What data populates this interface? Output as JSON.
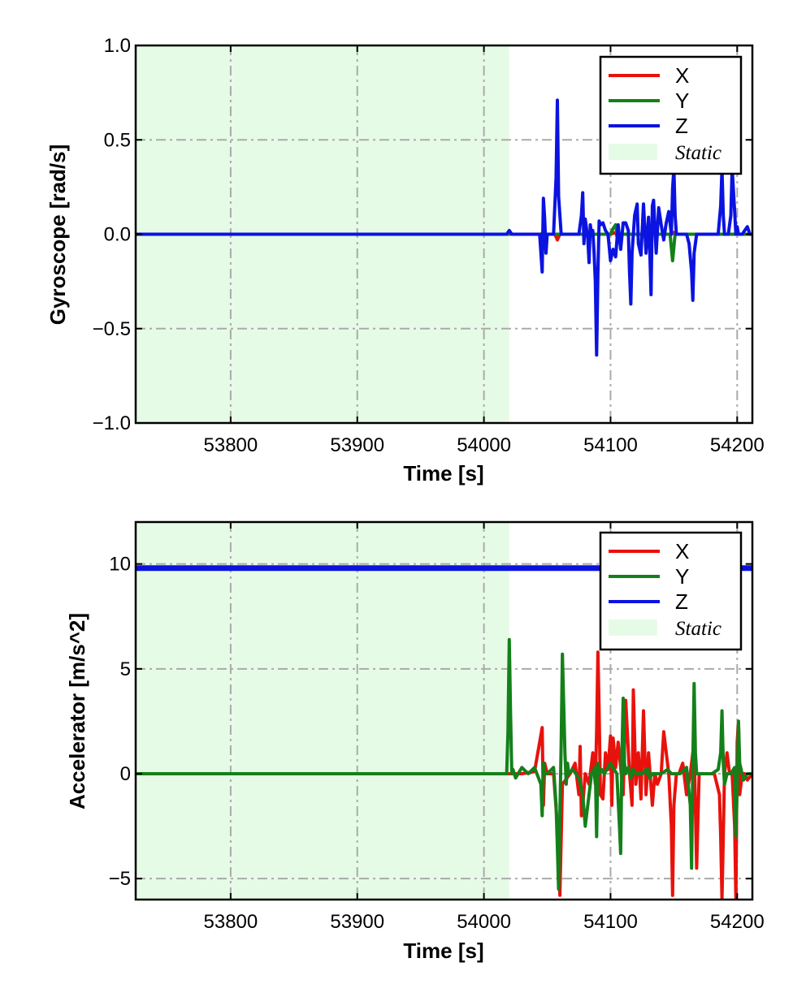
{
  "colors": {
    "X": "#e8120c",
    "Y": "#14801a",
    "Z": "#0b13e0",
    "static": "#e6fbe6",
    "grid": "#aaaaaa"
  },
  "chart_data": [
    {
      "type": "line",
      "xlabel": "Time [s]",
      "ylabel": "Gyroscope [rad/s]",
      "xlim": [
        53725,
        54212
      ],
      "ylim": [
        -1.0,
        1.0
      ],
      "xticks": [
        53800,
        53900,
        54000,
        54100,
        54200
      ],
      "xtick_labels": [
        "53800",
        "53900",
        "54000",
        "54100",
        "54200"
      ],
      "yticks": [
        -1.0,
        -0.5,
        0.0,
        0.5,
        1.0
      ],
      "ytick_labels": [
        "−1.0",
        "−0.5",
        "0.0",
        "0.5",
        "1.0"
      ],
      "grid": true,
      "legend": "top-right",
      "static_region": [
        53725,
        54020
      ],
      "static_label": "Static",
      "series": [
        {
          "name": "X",
          "x": [
            53725,
            54020,
            54045,
            54047,
            54049,
            54056,
            54058,
            54060,
            54100,
            54104,
            54106,
            54108,
            54148,
            54150,
            54152,
            54212
          ],
          "values": [
            0,
            0,
            0,
            0.01,
            0,
            0,
            -0.03,
            0,
            0,
            0.01,
            -0.03,
            0,
            0,
            0.01,
            0,
            0
          ]
        },
        {
          "name": "Y",
          "x": [
            53725,
            54020,
            54100,
            54102,
            54104,
            54106,
            54108,
            54147,
            54149,
            54151,
            54212
          ],
          "values": [
            0,
            0,
            0,
            0.03,
            0.05,
            -0.03,
            0,
            0,
            -0.14,
            0,
            0
          ]
        },
        {
          "name": "Z",
          "x": [
            53725,
            54018,
            54020,
            54022,
            54044,
            54046,
            54047,
            54048,
            54049,
            54050,
            54055,
            54057,
            54058,
            54059,
            54061,
            54075,
            54077,
            54078,
            54079,
            54080,
            54082,
            54083,
            54084,
            54085,
            54086,
            54087,
            54088,
            54089,
            54090,
            54091,
            54092,
            54094,
            54096,
            54098,
            54100,
            54102,
            54104,
            54106,
            54108,
            54110,
            54112,
            54114,
            54115,
            54116,
            54117,
            54119,
            54121,
            54122,
            54124,
            54126,
            54128,
            54130,
            54131,
            54132,
            54133,
            54134,
            54136,
            54138,
            54140,
            54142,
            54144,
            54146,
            54148,
            54149,
            54150,
            54151,
            54152,
            54154,
            54156,
            54160,
            54162,
            54164,
            54165,
            54166,
            54168,
            54170,
            54175,
            54180,
            54185,
            54187,
            54188,
            54189,
            54190,
            54191,
            54193,
            54195,
            54196,
            54198,
            54199,
            54200,
            54201,
            54202,
            54204,
            54206,
            54208,
            54210,
            54212
          ],
          "values": [
            0,
            0,
            0.02,
            0,
            0,
            -0.2,
            0.19,
            0.08,
            -0.1,
            0,
            0,
            0.3,
            0.71,
            0.2,
            0,
            0,
            0.1,
            0.22,
            -0.05,
            0.08,
            -0.02,
            -0.15,
            0.05,
            0,
            0.02,
            -0.1,
            -0.25,
            -0.64,
            -0.2,
            0.07,
            0.05,
            0.06,
            0.02,
            0,
            -0.14,
            -0.08,
            -0.12,
            0.05,
            -0.08,
            0.06,
            0.06,
            0.02,
            -0.2,
            -0.37,
            -0.1,
            0.1,
            0.16,
            -0.05,
            -0.11,
            0.16,
            -0.1,
            0.09,
            -0.1,
            -0.32,
            0.15,
            0.18,
            -0.1,
            0.14,
            0.05,
            -0.03,
            0.06,
            0.12,
            0,
            0.24,
            0.35,
            0.1,
            0,
            0,
            0,
            0,
            -0.05,
            -0.2,
            -0.35,
            -0.1,
            0,
            0,
            0,
            0,
            0,
            0.15,
            0.35,
            0.1,
            0,
            0,
            0,
            0.1,
            0.35,
            0.12,
            0,
            0.04,
            0,
            0,
            0,
            0.02,
            0.04,
            0,
            0
          ]
        }
      ]
    },
    {
      "type": "line",
      "xlabel": "Time [s]",
      "ylabel": "Accelerator [m/s^2]",
      "xlim": [
        53725,
        54212
      ],
      "ylim": [
        -6,
        12
      ],
      "xticks": [
        53800,
        53900,
        54000,
        54100,
        54200
      ],
      "xtick_labels": [
        "53800",
        "53900",
        "54000",
        "54100",
        "54200"
      ],
      "yticks": [
        -5,
        0,
        5,
        10
      ],
      "ytick_labels": [
        "−5",
        "0",
        "5",
        "10"
      ],
      "grid": true,
      "legend": "top-right",
      "static_region": [
        53725,
        54020
      ],
      "static_label": "Static",
      "series": [
        {
          "name": "X",
          "x": [
            53725,
            54020,
            54030,
            54040,
            54046,
            54047,
            54048,
            54050,
            54055,
            54058,
            54060,
            54062,
            54068,
            54072,
            54075,
            54076,
            54077,
            54078,
            54080,
            54083,
            54086,
            54088,
            54089,
            54090,
            54091,
            54092,
            54094,
            54096,
            54098,
            54100,
            54101,
            54102,
            54104,
            54106,
            54108,
            54110,
            54112,
            54115,
            54117,
            54118,
            54120,
            54122,
            54124,
            54126,
            54128,
            54130,
            54133,
            54135,
            54137,
            54140,
            54142,
            54146,
            54148,
            54149,
            54150,
            54152,
            54154,
            54157,
            54160,
            54163,
            54166,
            54168,
            54170,
            54174,
            54178,
            54182,
            54186,
            54187,
            54188,
            54189,
            54190,
            54192,
            54194,
            54196,
            54198,
            54199,
            54200,
            54201,
            54202,
            54204,
            54206,
            54208,
            54212
          ],
          "values": [
            0,
            0,
            0,
            0.1,
            2.2,
            -1.5,
            0.5,
            0,
            0,
            -2.5,
            -5.8,
            -0.5,
            0,
            0.5,
            -1.0,
            1.3,
            -2.0,
            -1.5,
            0,
            -0.5,
            1.0,
            -0.5,
            2.0,
            5.8,
            3.0,
            -1.0,
            -1.2,
            1.0,
            0.2,
            1.8,
            -1.5,
            1.7,
            0.3,
            1.5,
            0.3,
            -1.0,
            3.5,
            0,
            -1.5,
            4.0,
            -0.5,
            1.0,
            -1.2,
            3.0,
            -1.0,
            1.0,
            -1.5,
            0,
            -0.5,
            0,
            2.0,
            0,
            -2.5,
            -5.8,
            -1.5,
            0,
            0,
            0.5,
            -1.0,
            0,
            1.5,
            -4.5,
            0,
            0,
            0,
            0,
            -1.0,
            -3.0,
            -6.0,
            -3.0,
            0,
            1.0,
            0,
            0,
            -2.5,
            -6.0,
            1.5,
            2.5,
            -1.0,
            0,
            0,
            -0.3,
            0
          ]
        },
        {
          "name": "Y",
          "x": [
            53725,
            54018,
            54019,
            54020,
            54021,
            54022,
            54023,
            54025,
            54030,
            54035,
            54040,
            54045,
            54046,
            54047,
            54048,
            54050,
            54055,
            54057,
            54058,
            54059,
            54060,
            54061,
            54062,
            54064,
            54065,
            54066,
            54067,
            54070,
            54075,
            54078,
            54080,
            54085,
            54088,
            54089,
            54090,
            54091,
            54093,
            54095,
            54100,
            54105,
            54107,
            54108,
            54109,
            54110,
            54111,
            54112,
            54114,
            54116,
            54118,
            54120,
            54125,
            54128,
            54129,
            54130,
            54131,
            54133,
            54140,
            54145,
            54148,
            54150,
            54155,
            54160,
            54163,
            54164,
            54165,
            54166,
            54167,
            54168,
            54170,
            54175,
            54180,
            54185,
            54187,
            54188,
            54189,
            54190,
            54192,
            54195,
            54198,
            54199,
            54200,
            54201,
            54202,
            54205,
            54208,
            54212
          ],
          "values": [
            0,
            0,
            2.0,
            6.4,
            3.0,
            0,
            0.2,
            -0.2,
            0.3,
            0,
            0.3,
            -0.5,
            -2.0,
            0.5,
            0,
            0,
            0.3,
            -1.5,
            -3.5,
            -5.5,
            -2.0,
            1.5,
            5.7,
            1.0,
            -0.5,
            0.5,
            0,
            0.2,
            -0.2,
            -1.0,
            -2.5,
            0,
            0.3,
            -3.0,
            0.5,
            0,
            0.2,
            0,
            0.5,
            0,
            -2.5,
            -3.8,
            1.0,
            3.6,
            0.5,
            0,
            0.3,
            -0.2,
            0.2,
            0,
            0,
            0.2,
            0,
            0.2,
            -0.2,
            0,
            0,
            0.2,
            0,
            0,
            0,
            0.3,
            -1.5,
            -4.5,
            0.5,
            4.3,
            1.0,
            0,
            0,
            0,
            0,
            0.2,
            1.0,
            3.0,
            0.5,
            -0.5,
            0,
            0,
            0.3,
            -3.0,
            -0.5,
            2.5,
            0.5,
            -0.3,
            0,
            0
          ]
        },
        {
          "name": "Z",
          "x": [
            53725,
            54212
          ],
          "values": [
            9.8,
            9.8
          ]
        }
      ]
    }
  ]
}
